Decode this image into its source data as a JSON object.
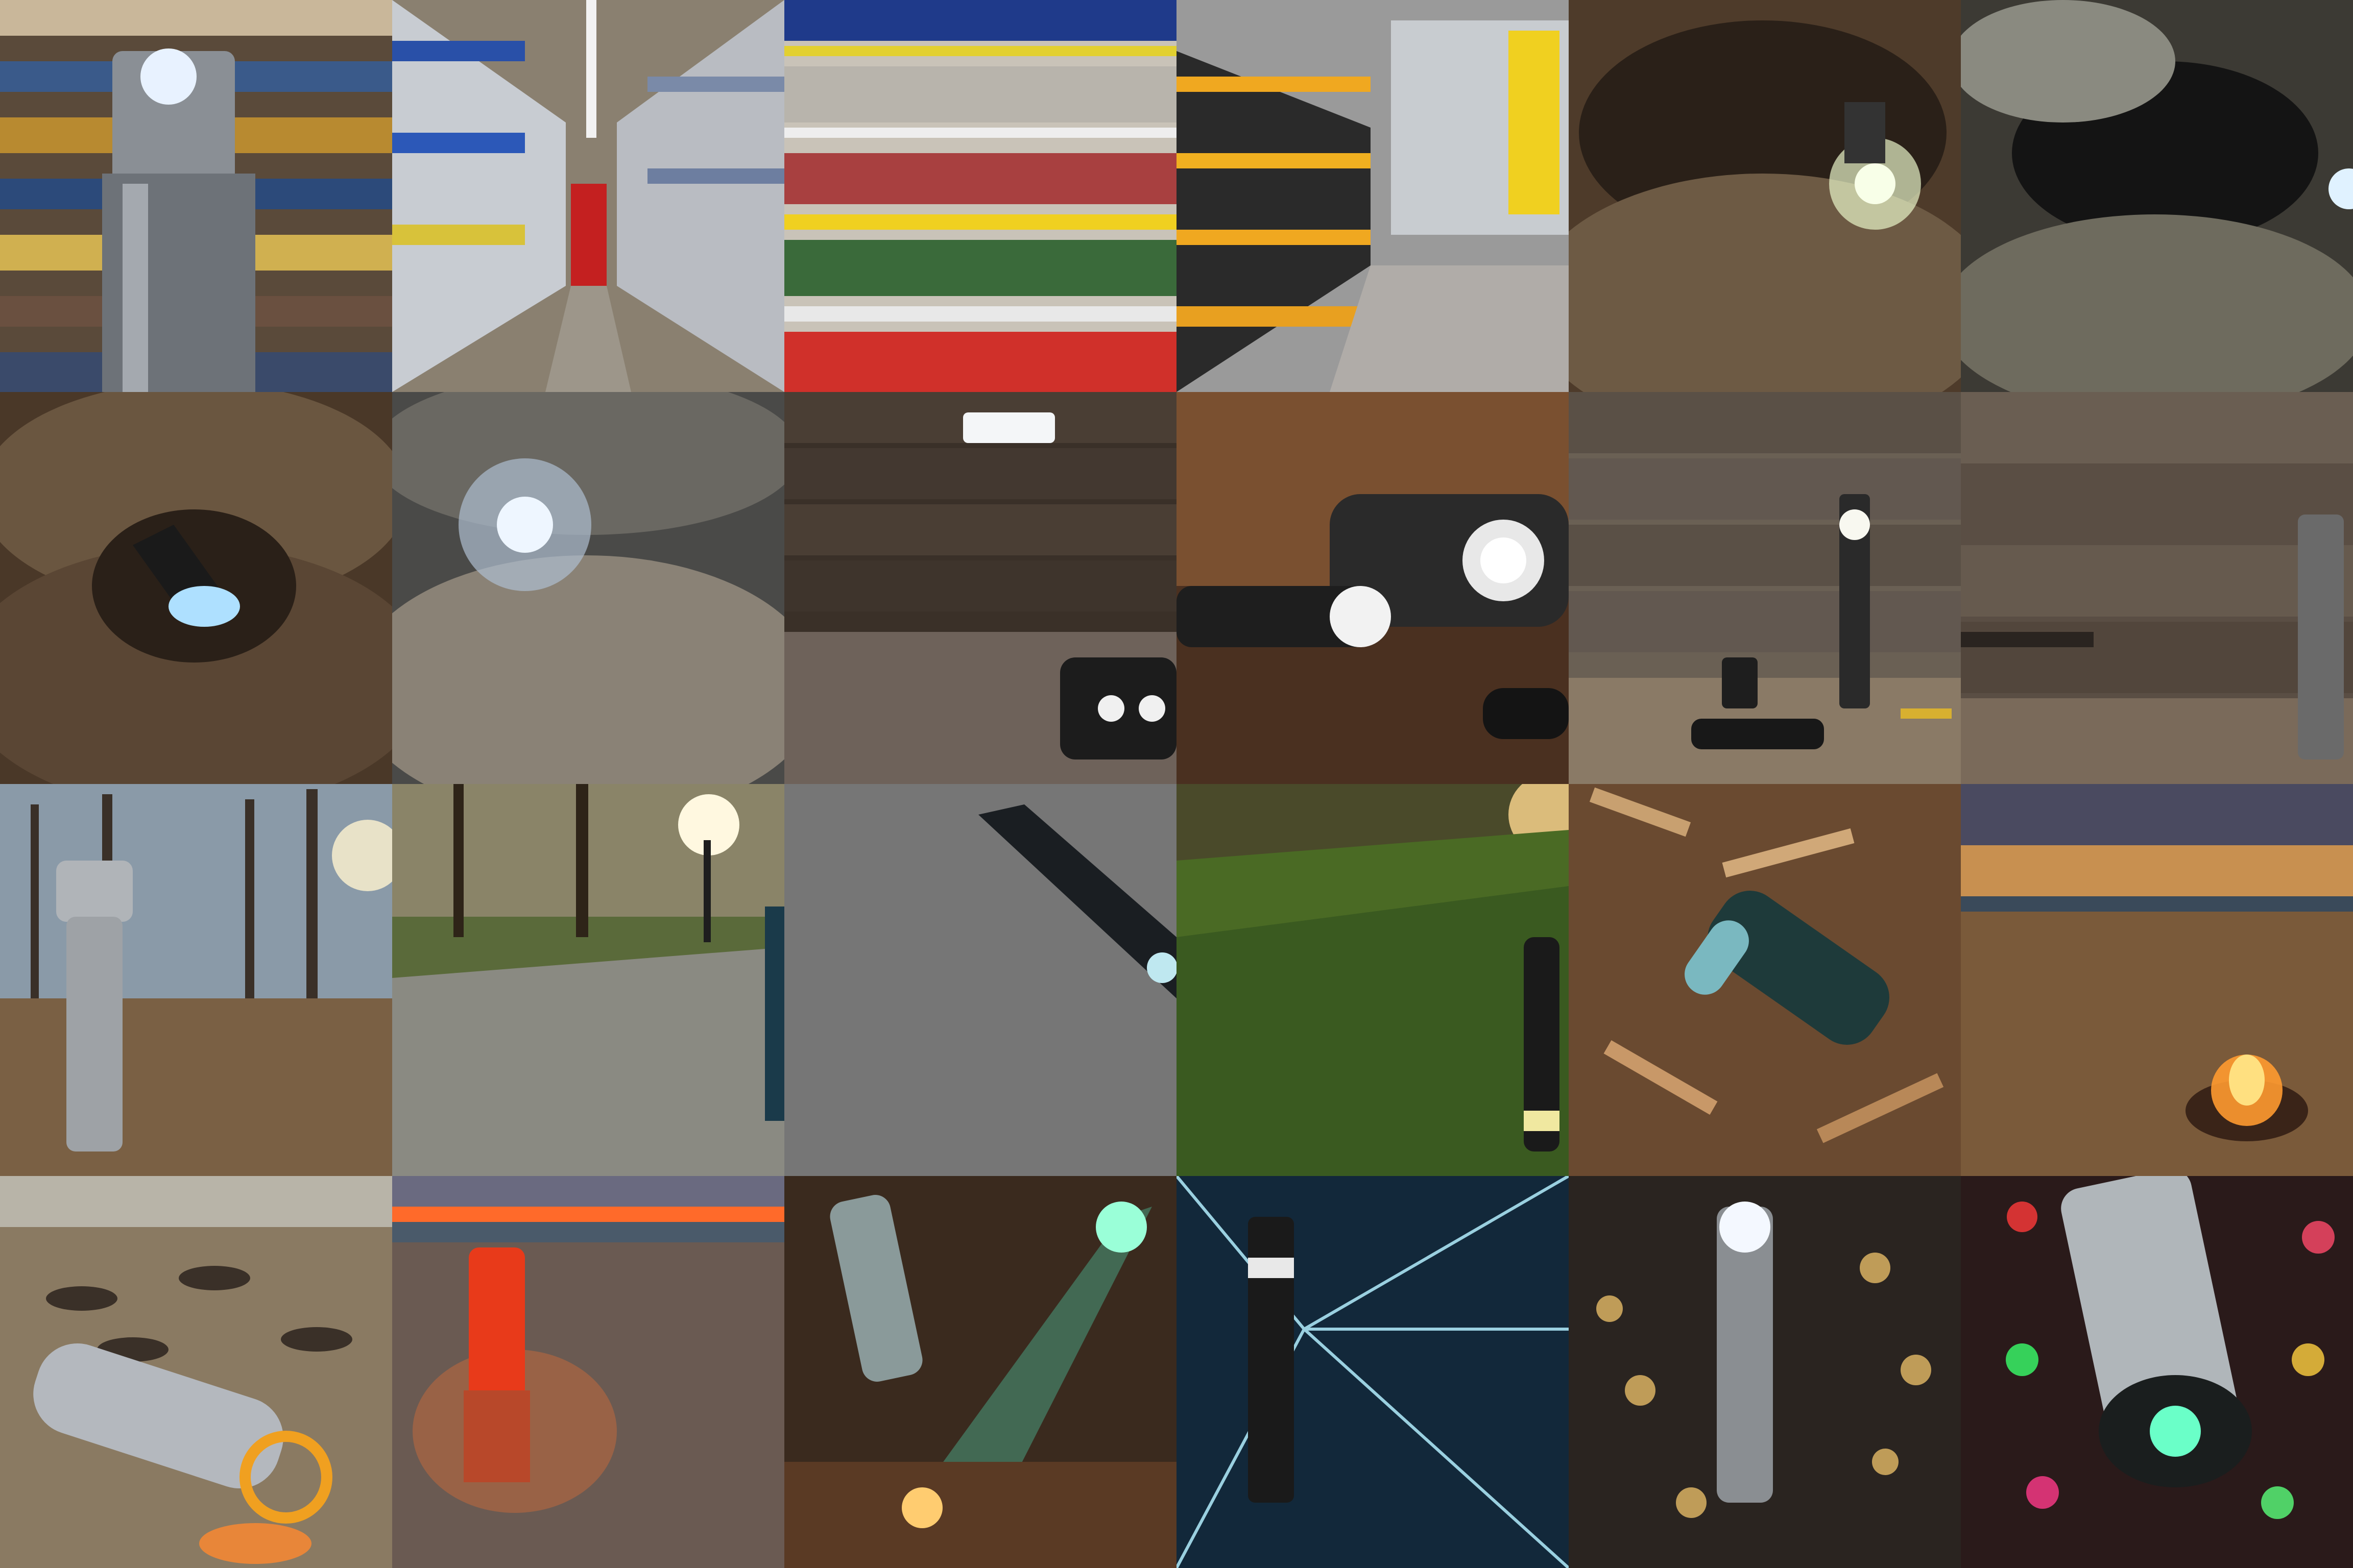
{
  "collage": {
    "rows": 4,
    "cols": 6,
    "tiles": [
      {
        "subject": "flashlight-in-store-aisle",
        "setting": "store"
      },
      {
        "subject": "store-aisle",
        "setting": "store"
      },
      {
        "subject": "store-shelves",
        "setting": "store"
      },
      {
        "subject": "store-aisle",
        "setting": "store"
      },
      {
        "subject": "flashlight-in-cave",
        "setting": "cave"
      },
      {
        "subject": "cave",
        "setting": "cave"
      },
      {
        "subject": "flashlight-in-cave",
        "setting": "cave"
      },
      {
        "subject": "cave-light",
        "setting": "cave"
      },
      {
        "subject": "flashlight-on-wood",
        "setting": "workshop"
      },
      {
        "subject": "flashlights-on-table",
        "setting": "workshop"
      },
      {
        "subject": "flashlight-standing",
        "setting": "workshop"
      },
      {
        "subject": "flashlight-wall",
        "setting": "workshop"
      },
      {
        "subject": "flashlight-in-park",
        "setting": "park"
      },
      {
        "subject": "park-path",
        "setting": "park"
      },
      {
        "subject": "flashlight-on-gravel",
        "setting": "gravel"
      },
      {
        "subject": "grass-sunset",
        "setting": "park"
      },
      {
        "subject": "flashlight-in-driftwood",
        "setting": "forest-floor"
      },
      {
        "subject": "beach-campfire",
        "setting": "beach"
      },
      {
        "subject": "flashlight-on-beach",
        "setting": "beach"
      },
      {
        "subject": "lantern-on-beach",
        "setting": "beach"
      },
      {
        "subject": "stage-lights",
        "setting": "concert"
      },
      {
        "subject": "flashlight-light-streaks",
        "setting": "abstract"
      },
      {
        "subject": "flashlight-bokeh",
        "setting": "abstract"
      },
      {
        "subject": "flashlight-colored-bokeh",
        "setting": "abstract"
      }
    ]
  }
}
